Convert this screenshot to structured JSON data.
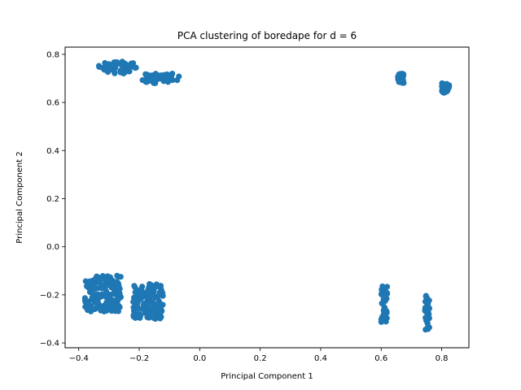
{
  "chart_data": {
    "type": "scatter",
    "title": "PCA clustering of boredape for d = 6",
    "xlabel": "Principal Component 1",
    "ylabel": "Principal Component 2",
    "xlim": [
      -0.445,
      0.89
    ],
    "ylim": [
      -0.42,
      0.83
    ],
    "xticks": [
      {
        "value": -0.4,
        "label": "−0.4"
      },
      {
        "value": -0.2,
        "label": "−0.2"
      },
      {
        "value": 0.0,
        "label": "0.0"
      },
      {
        "value": 0.2,
        "label": "0.2"
      },
      {
        "value": 0.4,
        "label": "0.4"
      },
      {
        "value": 0.6,
        "label": "0.6"
      },
      {
        "value": 0.8,
        "label": "0.8"
      }
    ],
    "yticks": [
      {
        "value": -0.4,
        "label": "−0.4"
      },
      {
        "value": -0.2,
        "label": "−0.2"
      },
      {
        "value": 0.0,
        "label": "0.0"
      },
      {
        "value": 0.2,
        "label": "0.2"
      },
      {
        "value": 0.4,
        "label": "0.4"
      },
      {
        "value": 0.6,
        "label": "0.6"
      },
      {
        "value": 0.8,
        "label": "0.8"
      }
    ],
    "grid": false,
    "marker_color": "#1f77b4",
    "clusters": [
      {
        "x_range": [
          -0.335,
          -0.21
        ],
        "y_range": [
          0.72,
          0.77
        ]
      },
      {
        "x_range": [
          -0.19,
          -0.065
        ],
        "y_range": [
          0.68,
          0.72
        ]
      },
      {
        "x_range": [
          0.655,
          0.675
        ],
        "y_range": [
          0.68,
          0.72
        ]
      },
      {
        "x_range": [
          0.8,
          0.825
        ],
        "y_range": [
          0.64,
          0.68
        ]
      },
      {
        "x_range": [
          -0.38,
          -0.26
        ],
        "y_range": [
          -0.27,
          -0.12
        ]
      },
      {
        "x_range": [
          -0.22,
          -0.12
        ],
        "y_range": [
          -0.3,
          -0.15
        ]
      },
      {
        "x_range": [
          0.6,
          0.62
        ],
        "y_range": [
          -0.32,
          -0.16
        ]
      },
      {
        "x_range": [
          0.745,
          0.76
        ],
        "y_range": [
          -0.35,
          -0.2
        ]
      }
    ]
  }
}
